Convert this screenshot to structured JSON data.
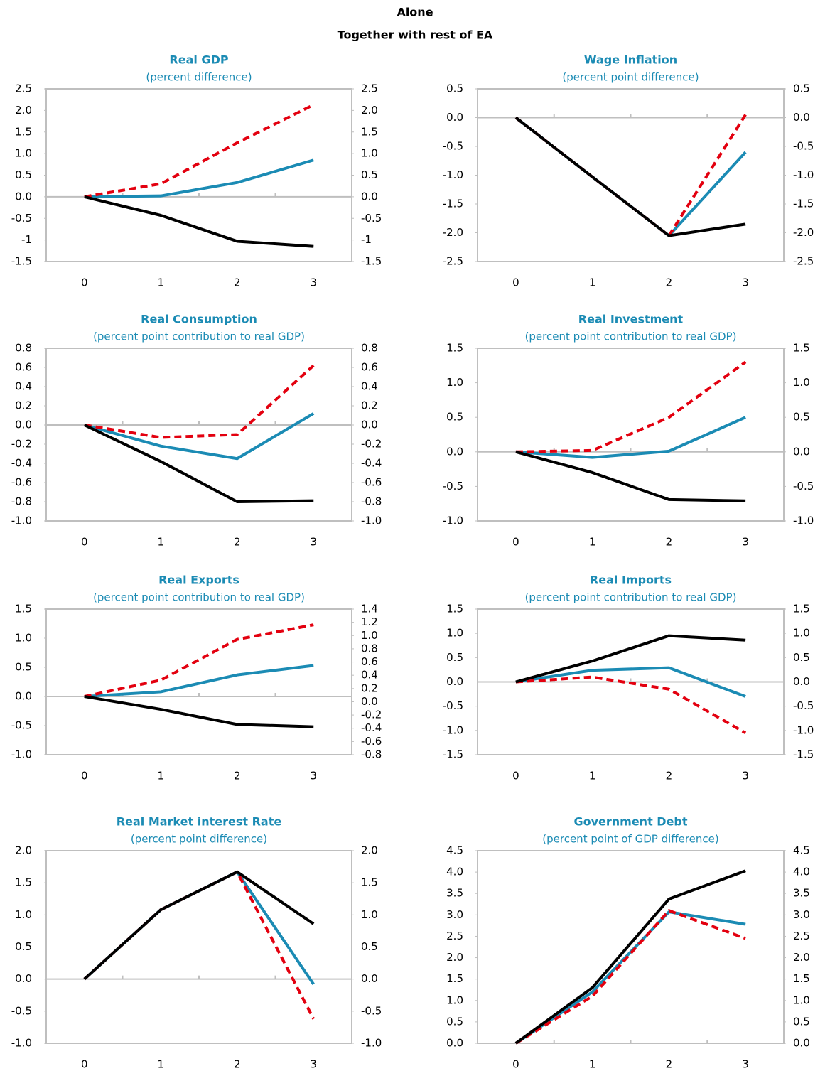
{
  "legend": [
    {
      "label": "Alone",
      "color": "#e3000f"
    },
    {
      "label": "Together with rest of EA",
      "color": "#000000"
    }
  ],
  "chart_data": [
    {
      "type": "line",
      "title": "Real GDP",
      "subtitle": "(percent difference)",
      "categories": [
        "0",
        "1",
        "2",
        "3"
      ],
      "ylim": [
        -1.5,
        2.5
      ],
      "yticks": [
        -1.5,
        -1,
        -0.5,
        {
          "value": 0,
          "label": "0.0"
        },
        0.5,
        {
          "value": 1,
          "label": "1.0"
        },
        1.5,
        {
          "value": 2,
          "label": "2.0"
        },
        2.5
      ],
      "y2lim": [
        -1.5,
        2.5
      ],
      "y2ticks": [
        -1.5,
        -1,
        -0.5,
        {
          "value": 0,
          "label": "0.0"
        },
        0.5,
        {
          "value": 1,
          "label": "1.0"
        },
        1.5,
        {
          "value": 2,
          "label": "2.0"
        },
        2.5
      ],
      "series": [
        {
          "color": "#1b8bb4",
          "values": [
            0,
            0.02,
            0.33,
            0.85
          ]
        },
        {
          "color": "#e3000f",
          "dashed": true,
          "values": [
            0,
            0.3,
            1.25,
            2.13
          ]
        },
        {
          "color": "#000000",
          "values": [
            0,
            -0.43,
            -1.03,
            -1.15
          ]
        }
      ]
    },
    {
      "type": "line",
      "title": "Wage Inflation",
      "subtitle": "(percent point difference)",
      "categories": [
        "0",
        "1",
        "2",
        "3"
      ],
      "ylim": [
        -2.5,
        0.5
      ],
      "yticks": [
        -2.5,
        {
          "value": -2,
          "label": "-2.0"
        },
        -1.5,
        {
          "value": -1,
          "label": "-1.0"
        },
        -0.5,
        {
          "value": 0,
          "label": "0.0"
        },
        0.5
      ],
      "y2lim": [
        -2.5,
        0.5
      ],
      "y2ticks": [
        -2.5,
        {
          "value": -2,
          "label": "-2.0"
        },
        -1.5,
        {
          "value": -1,
          "label": "-1.0"
        },
        -0.5,
        {
          "value": 0,
          "label": "0.0"
        },
        0.5
      ],
      "series": [
        {
          "color": "#1b8bb4",
          "values": [
            0,
            -1.03,
            -2.05,
            -0.6
          ]
        },
        {
          "color": "#e3000f",
          "dashed": true,
          "values": [
            0,
            -1.03,
            -2.05,
            0.05
          ]
        },
        {
          "color": "#000000",
          "values": [
            0,
            -1.03,
            -2.05,
            -1.85
          ]
        }
      ]
    },
    {
      "type": "line",
      "title": "Real Consumption",
      "subtitle": "(percent point contribution to real GDP)",
      "categories": [
        "0",
        "1",
        "2",
        "3"
      ],
      "ylim": [
        -1,
        0.8
      ],
      "yticks": [
        {
          "value": -1,
          "label": "-1.0"
        },
        -0.8,
        -0.6,
        -0.4,
        -0.2,
        {
          "value": 0,
          "label": "0.0"
        },
        0.2,
        0.4,
        0.6,
        0.8
      ],
      "y2lim": [
        -1,
        0.8
      ],
      "y2ticks": [
        {
          "value": -1,
          "label": "-1.0"
        },
        -0.8,
        -0.6,
        -0.4,
        -0.2,
        {
          "value": 0,
          "label": "0.0"
        },
        0.2,
        0.4,
        0.6,
        0.8
      ],
      "series": [
        {
          "color": "#1b8bb4",
          "values": [
            0,
            -0.22,
            -0.35,
            0.12
          ]
        },
        {
          "color": "#e3000f",
          "dashed": true,
          "values": [
            0,
            -0.13,
            -0.1,
            0.62
          ]
        },
        {
          "color": "#000000",
          "values": [
            0,
            -0.38,
            -0.8,
            -0.79
          ]
        }
      ]
    },
    {
      "type": "line",
      "title": "Real Investment",
      "subtitle": "(percent point contribution to real GDP)",
      "categories": [
        "0",
        "1",
        "2",
        "3"
      ],
      "ylim": [
        -1,
        1.5
      ],
      "yticks": [
        {
          "value": -1,
          "label": "-1.0"
        },
        -0.5,
        {
          "value": 0,
          "label": "0.0"
        },
        0.5,
        {
          "value": 1,
          "label": "1.0"
        },
        1.5
      ],
      "y2lim": [
        -1,
        1.5
      ],
      "y2ticks": [
        {
          "value": -1,
          "label": "-1.0"
        },
        -0.5,
        {
          "value": 0,
          "label": "0.0"
        },
        0.5,
        {
          "value": 1,
          "label": "1.0"
        },
        1.5
      ],
      "series": [
        {
          "color": "#1b8bb4",
          "values": [
            0,
            -0.08,
            0.01,
            0.5
          ]
        },
        {
          "color": "#e3000f",
          "dashed": true,
          "values": [
            0,
            0.02,
            0.5,
            1.3
          ]
        },
        {
          "color": "#000000",
          "values": [
            0,
            -0.3,
            -0.69,
            -0.71
          ]
        }
      ]
    },
    {
      "type": "line",
      "title": "Real Exports",
      "subtitle": "(percent point contribution to real GDP)",
      "categories": [
        "0",
        "1",
        "2",
        "3"
      ],
      "ylim": [
        -1,
        1.5
      ],
      "yticks": [
        {
          "value": -1,
          "label": "-1.0"
        },
        -0.5,
        {
          "value": 0,
          "label": "0.0"
        },
        0.5,
        {
          "value": 1,
          "label": "1.0"
        },
        1.5
      ],
      "y2lim": [
        -0.8,
        1.4
      ],
      "y2ticks": [
        -0.8,
        -0.6,
        -0.4,
        -0.2,
        {
          "value": 0,
          "label": "0.0"
        },
        0.2,
        0.4,
        0.6,
        0.8,
        {
          "value": 1,
          "label": "1.0"
        },
        1.2,
        1.4
      ],
      "series": [
        {
          "color": "#1b8bb4",
          "values": [
            0,
            0.08,
            0.37,
            0.53
          ]
        },
        {
          "color": "#e3000f",
          "dashed": true,
          "values": [
            0,
            0.28,
            0.98,
            1.23
          ]
        },
        {
          "color": "#000000",
          "values": [
            0,
            -0.22,
            -0.48,
            -0.52
          ]
        }
      ]
    },
    {
      "type": "line",
      "title": "Real Imports",
      "subtitle": "(percent point contribution to real GDP)",
      "categories": [
        "0",
        "1",
        "2",
        "3"
      ],
      "ylim": [
        -1.5,
        1.5
      ],
      "yticks": [
        -1.5,
        {
          "value": -1,
          "label": "-1.0"
        },
        -0.5,
        {
          "value": 0,
          "label": "0.0"
        },
        0.5,
        {
          "value": 1,
          "label": "1.0"
        },
        1.5
      ],
      "y2lim": [
        -1.5,
        1.5
      ],
      "y2ticks": [
        -1.5,
        {
          "value": -1,
          "label": "-1.0"
        },
        -0.5,
        {
          "value": 0,
          "label": "0.0"
        },
        0.5,
        {
          "value": 1,
          "label": "1.0"
        },
        1.5
      ],
      "series": [
        {
          "color": "#1b8bb4",
          "values": [
            0,
            0.24,
            0.29,
            -0.3
          ]
        },
        {
          "color": "#e3000f",
          "dashed": true,
          "values": [
            0,
            0.1,
            -0.15,
            -1.05
          ]
        },
        {
          "color": "#000000",
          "values": [
            0,
            0.43,
            0.95,
            0.86
          ]
        }
      ]
    },
    {
      "type": "line",
      "title": "Real Market interest Rate",
      "subtitle": "(percent point difference)",
      "categories": [
        "0",
        "1",
        "2",
        "3"
      ],
      "ylim": [
        -1,
        2
      ],
      "yticks": [
        {
          "value": -1,
          "label": "-1.0"
        },
        -0.5,
        {
          "value": 0,
          "label": "0.0"
        },
        0.5,
        {
          "value": 1,
          "label": "1.0"
        },
        1.5,
        {
          "value": 2,
          "label": "2.0"
        }
      ],
      "y2lim": [
        -1,
        2
      ],
      "y2ticks": [
        {
          "value": -1,
          "label": "-1.0"
        },
        -0.5,
        {
          "value": 0,
          "label": "0.0"
        },
        0.5,
        {
          "value": 1,
          "label": "1.0"
        },
        1.5,
        {
          "value": 2,
          "label": "2.0"
        }
      ],
      "series": [
        {
          "color": "#1b8bb4",
          "values": [
            0,
            1.08,
            1.67,
            -0.08
          ]
        },
        {
          "color": "#e3000f",
          "dashed": true,
          "values": [
            0,
            1.08,
            1.67,
            -0.62
          ]
        },
        {
          "color": "#000000",
          "values": [
            0,
            1.08,
            1.67,
            0.86
          ]
        }
      ]
    },
    {
      "type": "line",
      "title": "Government Debt",
      "subtitle": "(percent point of GDP difference)",
      "categories": [
        "0",
        "1",
        "2",
        "3"
      ],
      "ylim": [
        0,
        4.5
      ],
      "yticks": [
        {
          "value": 0,
          "label": "0.0"
        },
        0.5,
        {
          "value": 1,
          "label": "1.0"
        },
        1.5,
        {
          "value": 2,
          "label": "2.0"
        },
        2.5,
        {
          "value": 3,
          "label": "3.0"
        },
        3.5,
        {
          "value": 4,
          "label": "4.0"
        },
        4.5
      ],
      "y2lim": [
        0,
        4.5
      ],
      "y2ticks": [
        {
          "value": 0,
          "label": "0.0"
        },
        0.5,
        {
          "value": 1,
          "label": "1.0"
        },
        1.5,
        {
          "value": 2,
          "label": "2.0"
        },
        2.5,
        {
          "value": 3,
          "label": "3.0"
        },
        3.5,
        {
          "value": 4,
          "label": "4.0"
        },
        4.5
      ],
      "series": [
        {
          "color": "#1b8bb4",
          "values": [
            0,
            1.2,
            3.07,
            2.78
          ]
        },
        {
          "color": "#e3000f",
          "dashed": true,
          "values": [
            0,
            1.1,
            3.1,
            2.45
          ]
        },
        {
          "color": "#000000",
          "values": [
            0,
            1.3,
            3.37,
            4.03
          ]
        }
      ]
    }
  ]
}
